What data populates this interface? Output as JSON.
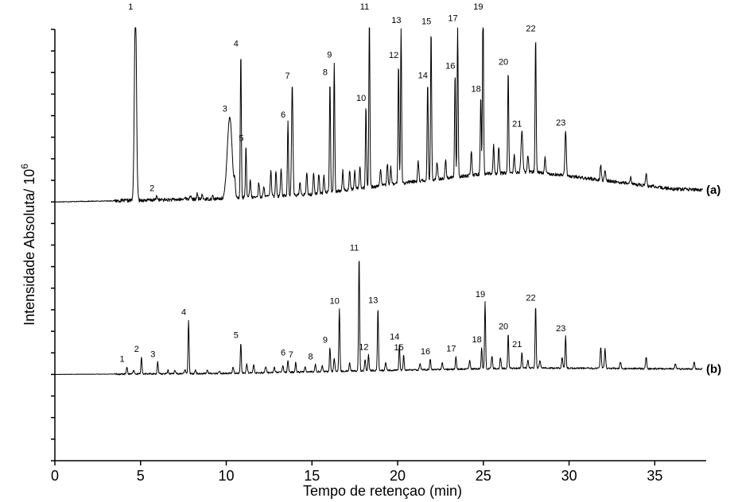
{
  "chart_data": {
    "type": "line",
    "xlabel": "Tempo de retençao (min)",
    "ylabel_main": "Intensidade Absoluta/ 10",
    "ylabel_exp": "6",
    "xlim": [
      0,
      38
    ],
    "ylim": [
      0,
      20
    ],
    "x_ticks": [
      0,
      5,
      10,
      15,
      20,
      25,
      30,
      35
    ],
    "y_tick_count": 21,
    "series": [
      {
        "name": "(a)",
        "baseline": 12,
        "drift": [
          [
            0,
            0
          ],
          [
            10,
            0.15
          ],
          [
            15,
            0.35
          ],
          [
            20,
            0.85
          ],
          [
            25,
            1.3
          ],
          [
            28,
            1.4
          ],
          [
            32,
            1.0
          ],
          [
            36,
            0.6
          ],
          [
            38,
            0.55
          ]
        ],
        "noise": 0.08,
        "peaks": [
          {
            "label": "1",
            "t": 4.7,
            "h": 9.3,
            "w": 0.06
          },
          {
            "label": "2",
            "t": 5.95,
            "h": 0.2,
            "w": 0.04
          },
          {
            "label": "3",
            "t": 10.2,
            "h": 3.8,
            "w": 0.14
          },
          {
            "label": "4",
            "t": 10.85,
            "h": 6.8,
            "w": 0.03
          },
          {
            "label": "5",
            "t": 11.15,
            "h": 2.4,
            "w": 0.03
          },
          {
            "label": "6",
            "t": 13.6,
            "h": 3.4,
            "w": 0.03
          },
          {
            "label": "7",
            "t": 13.85,
            "h": 5.2,
            "w": 0.04
          },
          {
            "label": "8",
            "t": 16.05,
            "h": 5.2,
            "w": 0.03
          },
          {
            "label": "9",
            "t": 16.3,
            "h": 6.0,
            "w": 0.03
          },
          {
            "label": "10",
            "t": 18.15,
            "h": 3.8,
            "w": 0.03
          },
          {
            "label": "11",
            "t": 18.35,
            "h": 8.1,
            "w": 0.03
          },
          {
            "label": "12",
            "t": 20.05,
            "h": 5.6,
            "w": 0.03
          },
          {
            "label": "13",
            "t": 20.2,
            "h": 7.2,
            "w": 0.03
          },
          {
            "label": "14",
            "t": 21.75,
            "h": 4.5,
            "w": 0.03
          },
          {
            "label": "15",
            "t": 21.95,
            "h": 7.0,
            "w": 0.03
          },
          {
            "label": "16",
            "t": 23.35,
            "h": 4.8,
            "w": 0.03
          },
          {
            "label": "17",
            "t": 23.5,
            "h": 7.0,
            "w": 0.03
          },
          {
            "label": "18",
            "t": 24.85,
            "h": 3.6,
            "w": 0.03
          },
          {
            "label": "19",
            "t": 24.98,
            "h": 8.3,
            "w": 0.03
          },
          {
            "label": "20",
            "t": 26.45,
            "h": 4.8,
            "w": 0.03
          },
          {
            "label": "21",
            "t": 27.25,
            "h": 1.9,
            "w": 0.05
          },
          {
            "label": "22",
            "t": 28.05,
            "h": 6.3,
            "w": 0.03
          },
          {
            "label": "23",
            "t": 29.8,
            "h": 2.1,
            "w": 0.04
          }
        ],
        "minor_peaks": [
          [
            7.6,
            0.15
          ],
          [
            7.9,
            0.2
          ],
          [
            8.3,
            0.25
          ],
          [
            8.6,
            0.2
          ],
          [
            9.2,
            0.15
          ],
          [
            10.5,
            0.6
          ],
          [
            11.4,
            0.8
          ],
          [
            11.9,
            0.7
          ],
          [
            12.2,
            0.5
          ],
          [
            12.6,
            1.2
          ],
          [
            12.9,
            1.2
          ],
          [
            13.2,
            1.3
          ],
          [
            14.3,
            0.6
          ],
          [
            14.7,
            1.0
          ],
          [
            15.1,
            1.0
          ],
          [
            15.4,
            0.9
          ],
          [
            15.7,
            0.8
          ],
          [
            16.8,
            0.9
          ],
          [
            17.2,
            0.9
          ],
          [
            17.5,
            0.8
          ],
          [
            17.8,
            1.0
          ],
          [
            19.0,
            0.8
          ],
          [
            19.4,
            1.0
          ],
          [
            19.6,
            0.8
          ],
          [
            21.2,
            0.9
          ],
          [
            22.3,
            0.8
          ],
          [
            22.8,
            0.9
          ],
          [
            24.3,
            1.1
          ],
          [
            25.6,
            1.3
          ],
          [
            25.9,
            1.2
          ],
          [
            26.8,
            0.8
          ],
          [
            27.6,
            0.8
          ],
          [
            28.6,
            0.7
          ],
          [
            31.85,
            0.75
          ],
          [
            32.1,
            0.5
          ],
          [
            33.6,
            0.3
          ],
          [
            34.5,
            0.6
          ]
        ]
      },
      {
        "name": "(b)",
        "baseline": 4,
        "drift": [
          [
            0,
            0
          ],
          [
            10,
            0.05
          ],
          [
            20,
            0.2
          ],
          [
            28,
            0.3
          ],
          [
            38,
            0.25
          ]
        ],
        "noise": 0.04,
        "peaks": [
          {
            "label": "1",
            "t": 4.2,
            "h": 0.35,
            "w": 0.03
          },
          {
            "label": "2",
            "t": 5.05,
            "h": 0.8,
            "w": 0.03
          },
          {
            "label": "3",
            "t": 6.0,
            "h": 0.55,
            "w": 0.03
          },
          {
            "label": "4",
            "t": 7.8,
            "h": 2.5,
            "w": 0.03
          },
          {
            "label": "5",
            "t": 10.85,
            "h": 1.4,
            "w": 0.03
          },
          {
            "label": "6",
            "t": 13.6,
            "h": 0.55,
            "w": 0.03
          },
          {
            "label": "7",
            "t": 14.05,
            "h": 0.45,
            "w": 0.03
          },
          {
            "label": "8",
            "t": 15.2,
            "h": 0.35,
            "w": 0.03
          },
          {
            "label": "9",
            "t": 16.05,
            "h": 1.1,
            "w": 0.03
          },
          {
            "label": "10",
            "t": 16.6,
            "h": 2.9,
            "w": 0.03
          },
          {
            "label": "11",
            "t": 17.75,
            "h": 5.35,
            "w": 0.03
          },
          {
            "label": "12",
            "t": 18.3,
            "h": 0.75,
            "w": 0.03
          },
          {
            "label": "13",
            "t": 18.85,
            "h": 2.9,
            "w": 0.03
          },
          {
            "label": "14",
            "t": 20.1,
            "h": 1.2,
            "w": 0.03
          },
          {
            "label": "15",
            "t": 20.35,
            "h": 0.7,
            "w": 0.03
          },
          {
            "label": "16",
            "t": 21.9,
            "h": 0.5,
            "w": 0.03
          },
          {
            "label": "17",
            "t": 23.4,
            "h": 0.6,
            "w": 0.03
          },
          {
            "label": "18",
            "t": 24.9,
            "h": 1.0,
            "w": 0.03
          },
          {
            "label": "19",
            "t": 25.1,
            "h": 3.1,
            "w": 0.03
          },
          {
            "label": "20",
            "t": 26.45,
            "h": 1.6,
            "w": 0.03
          },
          {
            "label": "21",
            "t": 27.25,
            "h": 0.75,
            "w": 0.03
          },
          {
            "label": "22",
            "t": 28.05,
            "h": 2.9,
            "w": 0.03
          },
          {
            "label": "23",
            "t": 29.8,
            "h": 1.5,
            "w": 0.03
          }
        ],
        "minor_peaks": [
          [
            4.6,
            0.15
          ],
          [
            6.6,
            0.15
          ],
          [
            7.0,
            0.15
          ],
          [
            7.6,
            0.2
          ],
          [
            8.2,
            0.15
          ],
          [
            8.9,
            0.15
          ],
          [
            9.6,
            0.1
          ],
          [
            10.4,
            0.3
          ],
          [
            11.2,
            0.4
          ],
          [
            11.6,
            0.35
          ],
          [
            12.3,
            0.3
          ],
          [
            12.8,
            0.25
          ],
          [
            13.3,
            0.3
          ],
          [
            14.6,
            0.25
          ],
          [
            15.6,
            0.3
          ],
          [
            16.3,
            0.6
          ],
          [
            17.2,
            0.4
          ],
          [
            18.1,
            0.5
          ],
          [
            19.3,
            0.4
          ],
          [
            21.3,
            0.3
          ],
          [
            22.6,
            0.3
          ],
          [
            24.2,
            0.4
          ],
          [
            25.5,
            0.6
          ],
          [
            26.0,
            0.5
          ],
          [
            27.6,
            0.4
          ],
          [
            28.3,
            0.35
          ],
          [
            29.6,
            0.5
          ],
          [
            31.85,
            1.0
          ],
          [
            32.1,
            0.9
          ],
          [
            33.0,
            0.3
          ],
          [
            34.5,
            0.55
          ],
          [
            36.2,
            0.25
          ],
          [
            37.3,
            0.35
          ]
        ]
      }
    ]
  }
}
